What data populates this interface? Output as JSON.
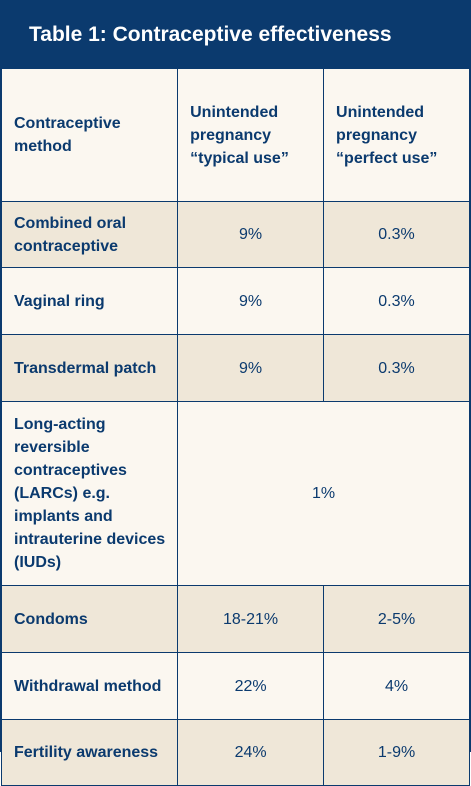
{
  "title": "Table 1: Contraceptive effectiveness",
  "headers": {
    "method": "Contraceptive method",
    "typical": "Unintended pregnancy “typical use”",
    "perfect": "Unintended pregnancy “perfect use”"
  },
  "rows": [
    {
      "method": "Combined oral contraceptive",
      "typical": "9%",
      "perfect": "0.3%"
    },
    {
      "method": "Vaginal ring",
      "typical": "9%",
      "perfect": "0.3%"
    },
    {
      "method": "Transdermal patch",
      "typical": "9%",
      "perfect": "0.3%"
    },
    {
      "method": "Long-acting reversible contraceptives (LARCs) e.g. implants and intrauterine devices (IUDs)",
      "combined": "1%"
    },
    {
      "method": "Condoms",
      "typical": "18-21%",
      "perfect": "2-5%"
    },
    {
      "method": "Withdrawal method",
      "typical": "22%",
      "perfect": "4%"
    },
    {
      "method": "Fertility awareness",
      "typical": "24%",
      "perfect": "1-9%"
    }
  ]
}
